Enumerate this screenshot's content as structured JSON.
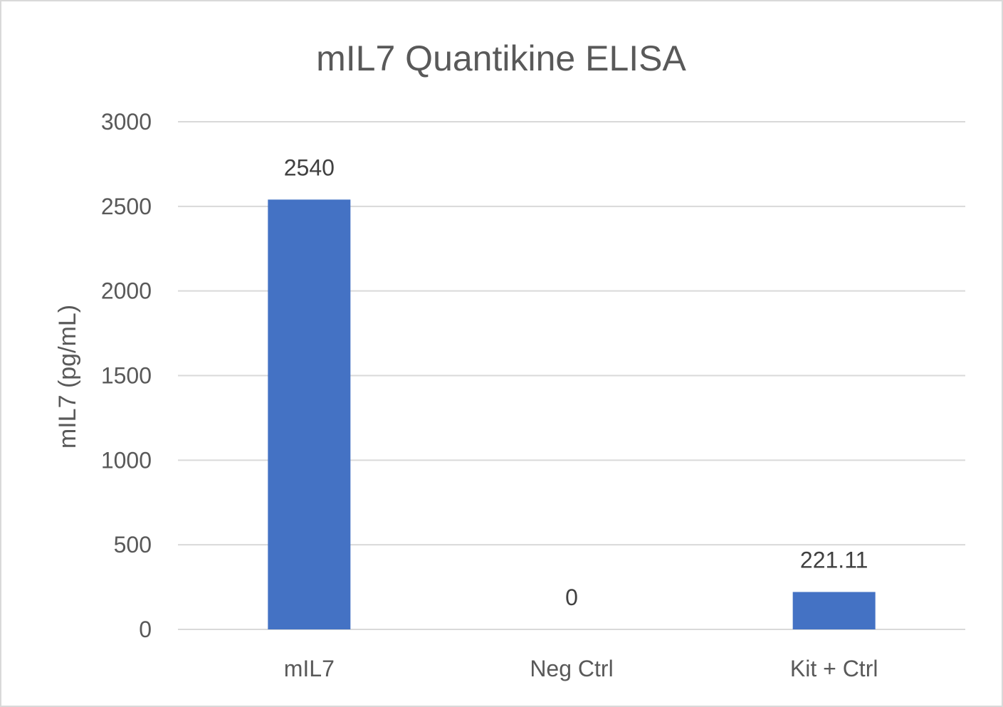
{
  "chart_data": {
    "type": "bar",
    "title": "mIL7 Quantikine ELISA",
    "xlabel": "",
    "ylabel": "mIL7 (pg/mL)",
    "categories": [
      "mIL7",
      "Neg Ctrl",
      "Kit + Ctrl"
    ],
    "values": [
      2540,
      0,
      221.11
    ],
    "data_labels": [
      "2540",
      "0",
      "221.11"
    ],
    "ylim": [
      0,
      3000
    ],
    "yticks": [
      0,
      500,
      1000,
      1500,
      2000,
      2500,
      3000
    ],
    "bar_color": "#4472C4",
    "grid": true,
    "legend": "none"
  }
}
